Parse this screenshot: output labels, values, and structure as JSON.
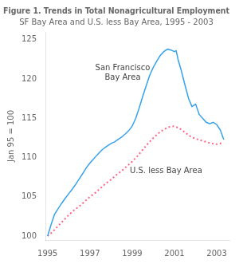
{
  "chart_data": {
    "type": "line",
    "title": "Figure 1. Trends in Total Nonagricultural Employment",
    "subtitle": "SF Bay Area and U.S. less Bay Area, 1995 - 2003",
    "y_label": "Jan 95 = 100",
    "xlim": [
      1994.9,
      2003.6
    ],
    "ylim": [
      99.5,
      126
    ],
    "xticks": [
      1995,
      1997,
      1999,
      2001,
      2003
    ],
    "yticks": [
      100,
      105,
      110,
      115,
      120,
      125
    ],
    "grid": false,
    "annotations": [
      {
        "text": "San Francisco\nBay Area",
        "x": 1998.55,
        "y": 120.8
      },
      {
        "text": "U.S. less Bay Area",
        "x": 2000.6,
        "y": 108.3
      }
    ],
    "series": [
      {
        "line_style": "solid",
        "x": [
          1995.0,
          1995.17,
          1995.33,
          1995.5,
          1995.67,
          1995.83,
          1996.0,
          1996.17,
          1996.33,
          1996.5,
          1996.67,
          1996.83,
          1997.0,
          1997.17,
          1997.33,
          1997.5,
          1997.67,
          1997.83,
          1998.0,
          1998.17,
          1998.33,
          1998.5,
          1998.67,
          1998.83,
          1999.0,
          1999.17,
          1999.33,
          1999.5,
          1999.67,
          1999.83,
          2000.0,
          2000.17,
          2000.33,
          2000.5,
          2000.67,
          2000.83,
          2001.0,
          2001.08,
          2001.17,
          2001.33,
          2001.5,
          2001.67,
          2001.83,
          2002.0,
          2002.17,
          2002.33,
          2002.5,
          2002.67,
          2002.83,
          2003.0,
          2003.17,
          2003.33
        ],
        "values": [
          100.0,
          101.5,
          102.8,
          103.5,
          104.2,
          104.8,
          105.4,
          106.0,
          106.6,
          107.3,
          108.0,
          108.7,
          109.3,
          109.8,
          110.3,
          110.8,
          111.2,
          111.5,
          111.8,
          112.0,
          112.3,
          112.6,
          113.0,
          113.4,
          114.0,
          115.0,
          116.3,
          117.8,
          119.2,
          120.5,
          121.5,
          122.3,
          123.0,
          123.5,
          123.8,
          123.7,
          123.5,
          123.6,
          122.5,
          121.0,
          119.2,
          117.5,
          116.5,
          116.8,
          115.5,
          115.0,
          114.5,
          114.3,
          114.5,
          114.2,
          113.5,
          112.3
        ]
      },
      {
        "line_style": "dotted",
        "x": [
          1995.0,
          1995.25,
          1995.5,
          1995.75,
          1996.0,
          1996.25,
          1996.5,
          1996.75,
          1997.0,
          1997.25,
          1997.5,
          1997.75,
          1998.0,
          1998.25,
          1998.5,
          1998.75,
          1999.0,
          1999.25,
          1999.5,
          1999.75,
          2000.0,
          2000.25,
          2000.5,
          2000.75,
          2001.0,
          2001.25,
          2001.5,
          2001.75,
          2002.0,
          2002.25,
          2002.5,
          2002.75,
          2003.0,
          2003.33
        ],
        "values": [
          100.0,
          100.6,
          101.3,
          102.0,
          102.7,
          103.3,
          103.8,
          104.4,
          105.0,
          105.5,
          106.1,
          106.7,
          107.2,
          107.8,
          108.3,
          108.9,
          109.5,
          110.2,
          111.0,
          111.8,
          112.5,
          113.1,
          113.6,
          113.9,
          114.0,
          113.7,
          113.2,
          112.7,
          112.4,
          112.2,
          112.0,
          111.8,
          111.7,
          111.9
        ]
      }
    ]
  }
}
